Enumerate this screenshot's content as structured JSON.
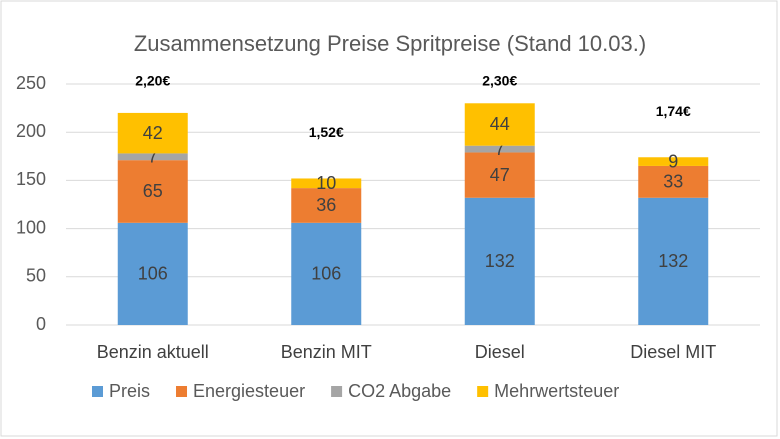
{
  "chart_data": {
    "type": "stacked_bar",
    "title": "Zusammensetzung Preise Spritpreise (Stand 10.03.)",
    "categories": [
      "Benzin aktuell",
      "Benzin MIT",
      "Diesel",
      "Diesel MIT"
    ],
    "series": [
      {
        "name": "Preis",
        "color": "#5b9bd5",
        "values": [
          106,
          106,
          132,
          132
        ]
      },
      {
        "name": "Energiesteuer",
        "color": "#ed7d31",
        "values": [
          65,
          36,
          47,
          33
        ]
      },
      {
        "name": "CO2 Abgabe",
        "color": "#a5a5a5",
        "values": [
          7,
          0,
          7,
          0
        ]
      },
      {
        "name": "Mehrwertsteuer",
        "color": "#ffc000",
        "values": [
          42,
          10,
          44,
          9
        ]
      }
    ],
    "annotations": [
      "2,20€",
      "1,52€",
      "2,30€",
      "1,74€"
    ],
    "ylim": [
      0,
      250
    ],
    "yticks": [
      0,
      50,
      100,
      150,
      200,
      250
    ],
    "grid": true,
    "legend": "bottom"
  }
}
